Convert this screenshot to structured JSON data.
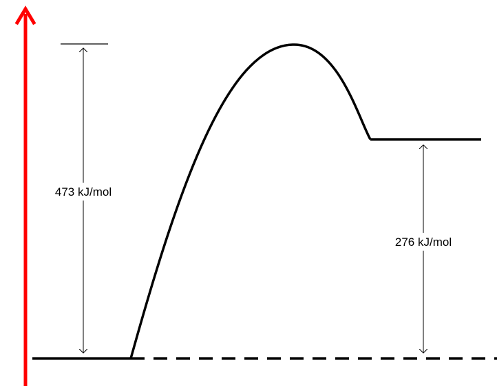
{
  "diagram": {
    "type": "energy-profile",
    "activation_energy_label": "473 kJ/mol",
    "reaction_energy_label": "276 kJ/mol",
    "activation_energy_value": 473,
    "reaction_energy_value": 276,
    "energy_unit": "kJ/mol"
  },
  "colors": {
    "axis": "#ff0000",
    "curve": "#000000",
    "background": "#ffffff"
  }
}
